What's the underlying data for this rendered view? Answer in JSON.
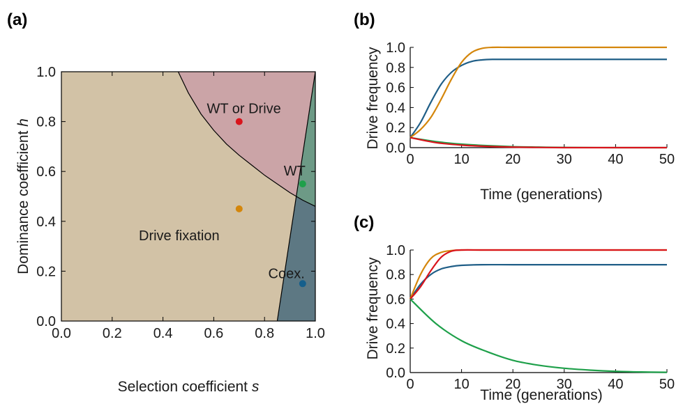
{
  "chart_data": [
    {
      "panel": "(a)",
      "type": "heatmap",
      "xlabel": "Selection coefficient ",
      "xlabel_var": "s",
      "ylabel": "Dominance coefficient ",
      "ylabel_var": "h",
      "xlim": [
        0,
        1
      ],
      "ylim": [
        0,
        1
      ],
      "xticks": [
        "0.0",
        "0.2",
        "0.4",
        "0.6",
        "0.8",
        "1.0"
      ],
      "yticks": [
        "0.0",
        "0.2",
        "0.4",
        "0.6",
        "0.8",
        "1.0"
      ],
      "regions": [
        {
          "name": "Drive fixation",
          "color": "#d2c2a6"
        },
        {
          "name": "WT or Drive",
          "color": "#cba4a7"
        },
        {
          "name": "WT",
          "color": "#6d9a86"
        },
        {
          "name": "Coex.",
          "color": "#5d7883"
        }
      ],
      "boundaries": {
        "curve": [
          [
            0.46,
            1.0
          ],
          [
            0.5,
            0.915
          ],
          [
            0.55,
            0.83
          ],
          [
            0.6,
            0.765
          ],
          [
            0.65,
            0.71
          ],
          [
            0.7,
            0.665
          ],
          [
            0.75,
            0.625
          ],
          [
            0.8,
            0.585
          ],
          [
            0.85,
            0.55
          ],
          [
            0.9,
            0.515
          ],
          [
            0.95,
            0.485
          ],
          [
            1.0,
            0.46
          ]
        ],
        "line": [
          [
            0.85,
            0.0
          ],
          [
            1.0,
            1.0
          ]
        ]
      },
      "points": [
        {
          "label": "WT or Drive",
          "x": 0.7,
          "y": 0.8,
          "color": "#d9141c"
        },
        {
          "label": "WT",
          "x": 0.95,
          "y": 0.55,
          "color": "#1ea04a"
        },
        {
          "label": "",
          "x": 0.7,
          "y": 0.45,
          "color": "#d4860b"
        },
        {
          "label": "Coex.",
          "x": 0.95,
          "y": 0.15,
          "color": "#155f8c"
        }
      ],
      "region_text": "Drive fixation"
    },
    {
      "panel": "(b)",
      "type": "line",
      "xlabel": "Time (generations)",
      "ylabel": "Drive frequency",
      "xlim": [
        0,
        50
      ],
      "ylim": [
        0,
        1
      ],
      "xticks": [
        "0",
        "10",
        "20",
        "30",
        "40",
        "50"
      ],
      "yticks": [
        "0.0",
        "0.2",
        "0.4",
        "0.6",
        "0.8",
        "1.0"
      ],
      "series": [
        {
          "color": "#1f5e87",
          "x": [
            0,
            2,
            4,
            6,
            8,
            10,
            12,
            14,
            16,
            20,
            30,
            40,
            50
          ],
          "y": [
            0.1,
            0.25,
            0.45,
            0.63,
            0.75,
            0.82,
            0.86,
            0.875,
            0.88,
            0.88,
            0.88,
            0.88,
            0.88
          ]
        },
        {
          "color": "#d4860b",
          "x": [
            0,
            2,
            4,
            6,
            8,
            10,
            12,
            14,
            16,
            20,
            30,
            40,
            50
          ],
          "y": [
            0.1,
            0.18,
            0.3,
            0.48,
            0.68,
            0.85,
            0.95,
            0.99,
            1.0,
            1.0,
            1.0,
            1.0,
            1.0
          ]
        },
        {
          "color": "#1ea04a",
          "x": [
            0,
            5,
            10,
            15,
            20,
            25,
            30,
            40,
            50
          ],
          "y": [
            0.1,
            0.06,
            0.035,
            0.02,
            0.01,
            0.005,
            0.002,
            0.0,
            0.0
          ]
        },
        {
          "color": "#d9141c",
          "x": [
            0,
            5,
            10,
            15,
            20,
            25,
            30,
            40,
            50
          ],
          "y": [
            0.1,
            0.05,
            0.025,
            0.012,
            0.005,
            0.002,
            0.0,
            0.0,
            0.0
          ]
        }
      ]
    },
    {
      "panel": "(c)",
      "type": "line",
      "xlabel": "Time (generations)",
      "ylabel": "Drive frequency",
      "xlim": [
        0,
        50
      ],
      "ylim": [
        0,
        1
      ],
      "xticks": [
        "0",
        "10",
        "20",
        "30",
        "40",
        "50"
      ],
      "yticks": [
        "0.0",
        "0.2",
        "0.4",
        "0.6",
        "0.8",
        "1.0"
      ],
      "series": [
        {
          "color": "#1f5e87",
          "x": [
            0,
            2,
            4,
            6,
            8,
            10,
            14,
            20,
            30,
            40,
            50
          ],
          "y": [
            0.6,
            0.72,
            0.8,
            0.845,
            0.865,
            0.875,
            0.88,
            0.88,
            0.88,
            0.88,
            0.88
          ]
        },
        {
          "color": "#d4860b",
          "x": [
            0,
            2,
            4,
            6,
            8,
            10,
            14,
            20,
            30,
            40,
            50
          ],
          "y": [
            0.6,
            0.8,
            0.93,
            0.98,
            0.995,
            1.0,
            1.0,
            1.0,
            1.0,
            1.0,
            1.0
          ]
        },
        {
          "color": "#d9141c",
          "x": [
            0,
            2,
            4,
            6,
            8,
            10,
            14,
            20,
            30,
            40,
            50
          ],
          "y": [
            0.6,
            0.7,
            0.83,
            0.94,
            0.99,
            1.0,
            1.0,
            1.0,
            1.0,
            1.0,
            1.0
          ]
        },
        {
          "color": "#1ea04a",
          "x": [
            0,
            5,
            10,
            15,
            20,
            25,
            30,
            35,
            40,
            45,
            50
          ],
          "y": [
            0.6,
            0.4,
            0.26,
            0.17,
            0.1,
            0.06,
            0.035,
            0.02,
            0.01,
            0.005,
            0.002
          ]
        }
      ]
    }
  ]
}
